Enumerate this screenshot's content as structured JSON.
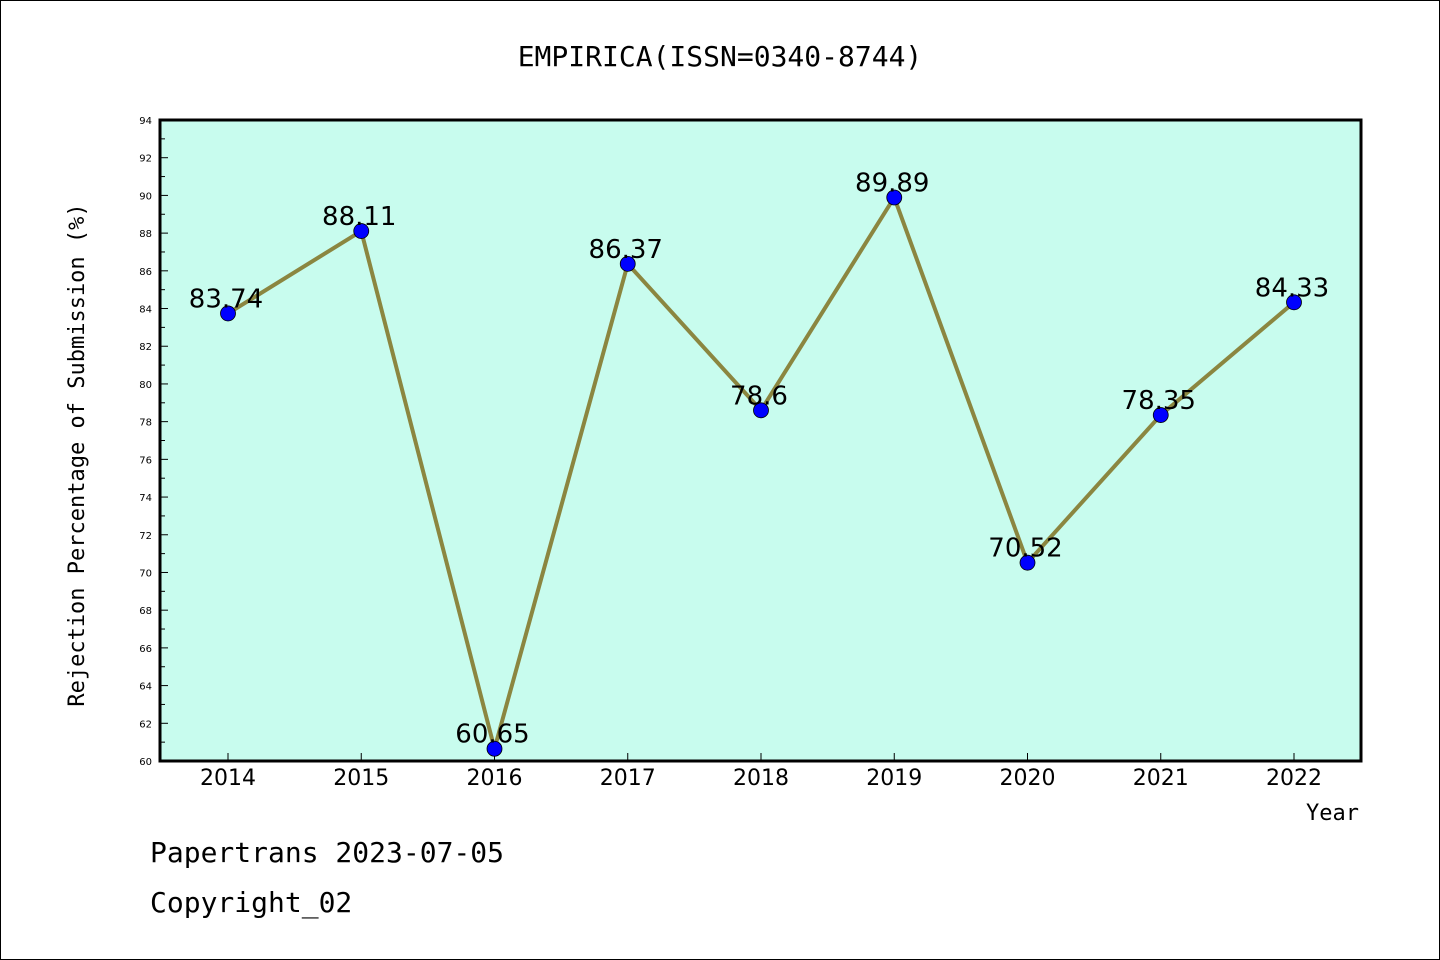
{
  "chart_data": {
    "type": "line",
    "title": "EMPIRICA(ISSN=0340-8744)",
    "xlabel": "Year",
    "ylabel": "Rejection Percentage of Submission (%)",
    "categories": [
      "2014",
      "2015",
      "2016",
      "2017",
      "2018",
      "2019",
      "2020",
      "2021",
      "2022"
    ],
    "values": [
      83.74,
      88.11,
      60.65,
      86.37,
      78.6,
      89.89,
      70.52,
      78.35,
      84.33
    ],
    "data_labels": [
      "83.74",
      "88.11",
      "60.65",
      "86.37",
      "78.6",
      "89.89",
      "70.52",
      "78.35",
      "84.33"
    ],
    "ylim": [
      60,
      94
    ],
    "yticks": [
      "60",
      "62",
      "64",
      "66",
      "68",
      "70",
      "72",
      "74",
      "76",
      "78",
      "80",
      "82",
      "84",
      "86",
      "88",
      "90",
      "92",
      "94"
    ],
    "grid": false,
    "colors": {
      "background": "#c8fcee",
      "line": "#8b8640",
      "marker": "#0000ff"
    }
  },
  "footer": {
    "line1": "Papertrans 2023-07-05",
    "line2": "Copyright_02"
  }
}
